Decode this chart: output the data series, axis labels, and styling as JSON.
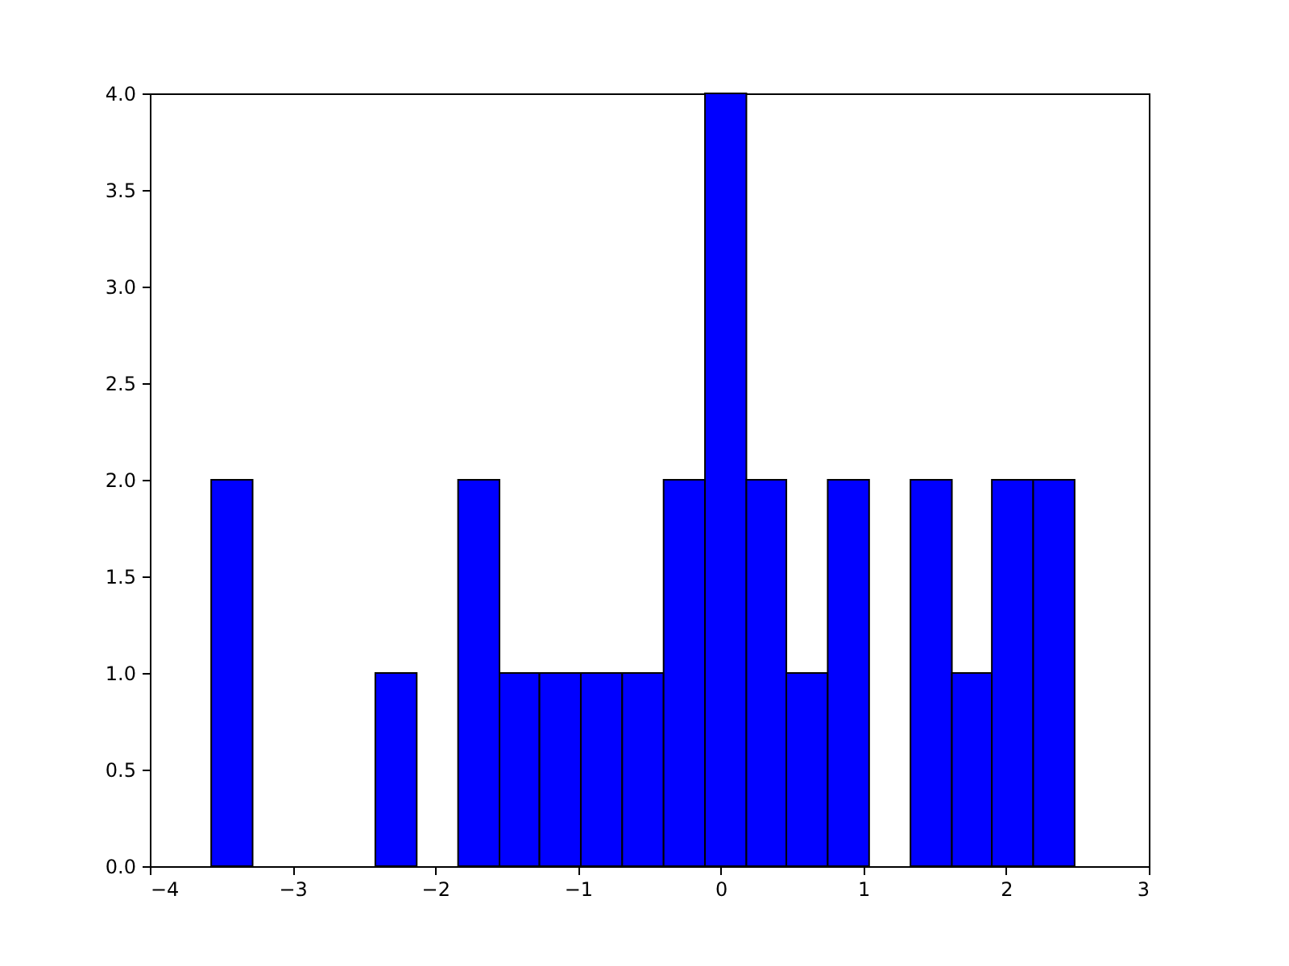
{
  "chart_data": {
    "type": "histogram",
    "bins": [
      -3.57,
      -3.28,
      -2.42,
      -2.13,
      -1.84,
      -1.55,
      -1.27,
      -0.98,
      -0.69,
      -0.4,
      -0.11,
      0.18,
      0.46,
      0.75,
      1.04,
      1.33,
      1.62,
      1.9,
      2.19,
      2.48
    ],
    "values": [
      2,
      0,
      1,
      0,
      2,
      1,
      1,
      1,
      1,
      2,
      4,
      2,
      1,
      2,
      0,
      2,
      1,
      2,
      2
    ],
    "color": "#0000ff",
    "xlim": [
      -4,
      3
    ],
    "xticks": [
      {
        "value": -4,
        "label": "−4"
      },
      {
        "value": -3,
        "label": "−3"
      },
      {
        "value": -2,
        "label": "−2"
      },
      {
        "value": -1,
        "label": "−1"
      },
      0,
      1,
      2,
      3
    ],
    "ylim": [
      0,
      4
    ],
    "yticks": [
      {
        "value": 0,
        "label": "0.0"
      },
      {
        "value": 0.5,
        "label": "0.5"
      },
      {
        "value": 1,
        "label": "1.0"
      },
      {
        "value": 1.5,
        "label": "1.5"
      },
      {
        "value": 2,
        "label": "2.0"
      },
      {
        "value": 2.5,
        "label": "2.5"
      },
      {
        "value": 3,
        "label": "3.0"
      },
      {
        "value": 3.5,
        "label": "3.5"
      },
      {
        "value": 4,
        "label": "4.0"
      }
    ],
    "grid": false
  }
}
